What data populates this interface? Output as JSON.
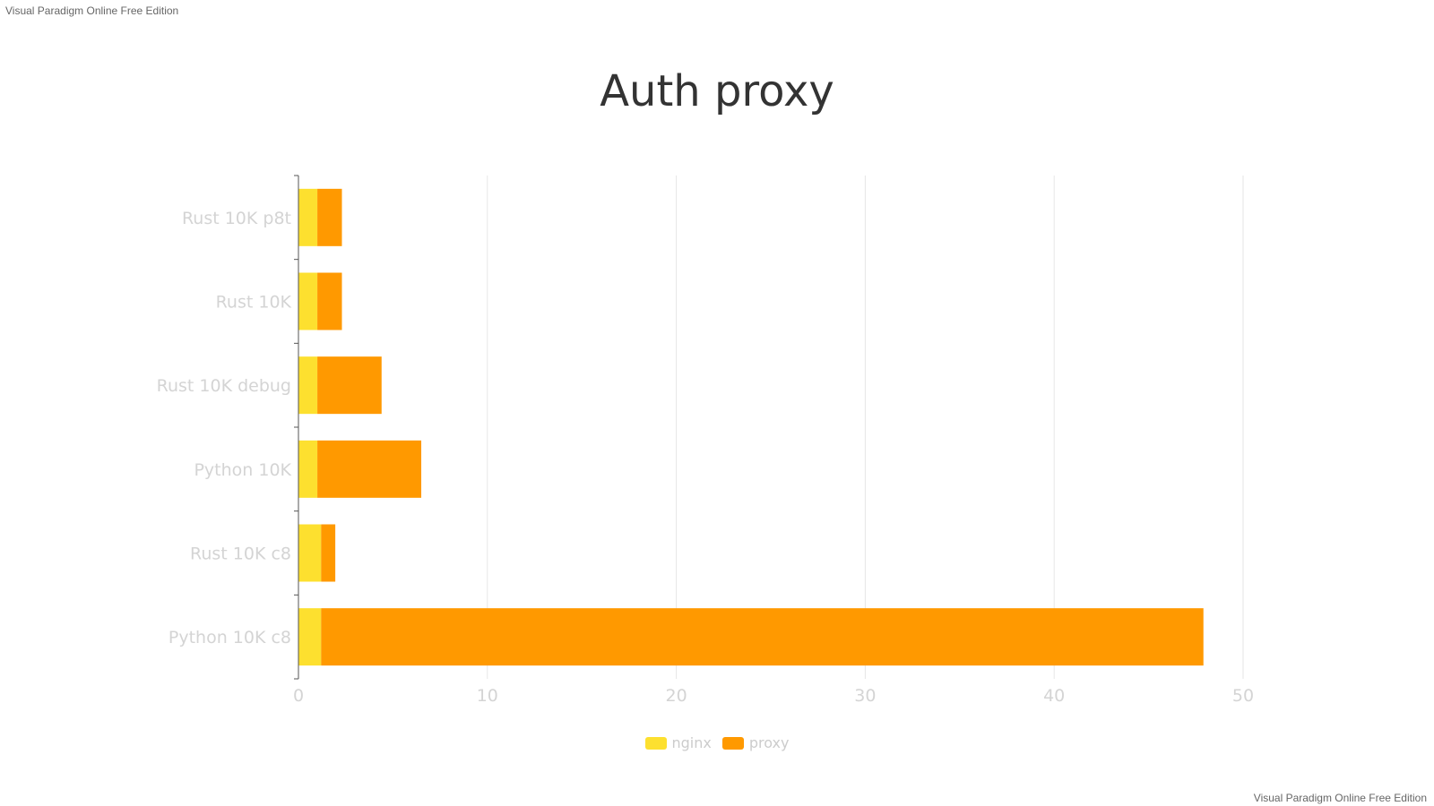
{
  "watermark": "Visual Paradigm Online Free Edition",
  "chart_data": {
    "type": "bar",
    "orientation": "horizontal",
    "stacked": true,
    "title": "Auth proxy",
    "categories": [
      "Rust 10K p8t",
      "Rust 10K",
      "Rust 10K debug",
      "Python 10K",
      "Rust 10K c8",
      "Python 10K c8"
    ],
    "series": [
      {
        "name": "nginx",
        "color": "#fde02f",
        "values": [
          1.0,
          1.0,
          1.0,
          1.0,
          1.2,
          1.2
        ]
      },
      {
        "name": "proxy",
        "color": "#ff9900",
        "values": [
          1.3,
          1.3,
          3.4,
          5.5,
          0.75,
          46.7
        ]
      }
    ],
    "xlim": [
      0,
      50
    ],
    "xticks": [
      0,
      10,
      20,
      30,
      40,
      50
    ],
    "grid": true,
    "legend_position": "bottom"
  }
}
